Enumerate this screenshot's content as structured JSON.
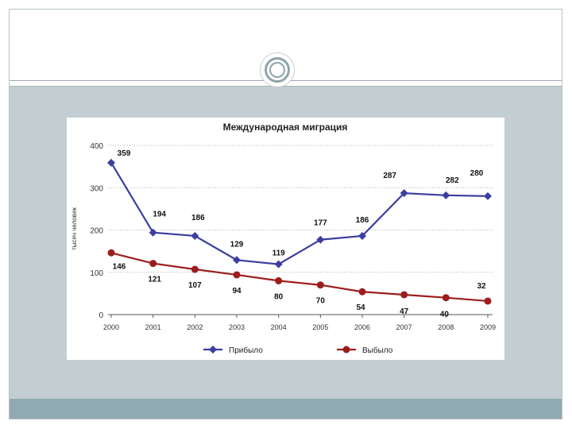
{
  "slide": {
    "colors": {
      "background": "#c3ced3",
      "band": "#8faab0"
    }
  },
  "chart_data": {
    "type": "line",
    "title": "Международная миграция",
    "xlabel": "",
    "ylabel": "тысяч человек",
    "ylim": [
      0,
      400
    ],
    "yticks": [
      "0",
      "100",
      "200",
      "300",
      "400"
    ],
    "categories": [
      "2000",
      "2001",
      "2002",
      "2003",
      "2004",
      "2005",
      "2006",
      "2007",
      "2008",
      "2009"
    ],
    "grid": true,
    "legend_position": "bottom",
    "series": [
      {
        "name": "Прибыло",
        "color": "#3b3fa0",
        "marker": "diamond",
        "values": [
          359,
          194,
          186,
          129,
          119,
          177,
          186,
          287,
          282,
          280
        ],
        "labels": [
          "359",
          "194",
          "186",
          "129",
          "119",
          "177",
          "186",
          "287",
          "282",
          "280"
        ]
      },
      {
        "name": "Выбыло",
        "color": "#9c1d1d",
        "marker": "circle",
        "values": [
          146,
          121,
          107,
          94,
          80,
          70,
          54,
          47,
          40,
          32
        ],
        "labels": [
          "146",
          "121",
          "107",
          "94",
          "80",
          "70",
          "54",
          "47",
          "40",
          "32"
        ]
      }
    ]
  }
}
